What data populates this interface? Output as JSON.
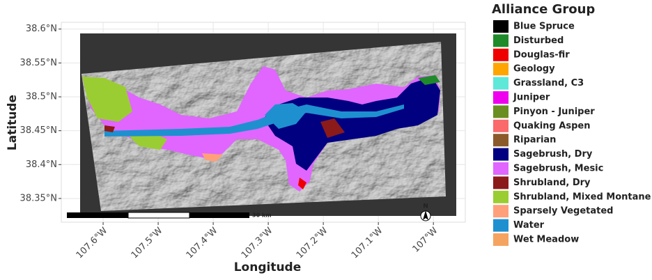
{
  "chart_data": {
    "type": "map",
    "xlabel": "Longitude",
    "ylabel": "Latitude",
    "xlim": [
      -107.676,
      -106.942
    ],
    "ylim": [
      38.315,
      38.61
    ],
    "xticks": [
      {
        "value": -107.6,
        "label": "107.6°W"
      },
      {
        "value": -107.5,
        "label": "107.5°W"
      },
      {
        "value": -107.4,
        "label": "107.4°W"
      },
      {
        "value": -107.3,
        "label": "107.3°W"
      },
      {
        "value": -107.2,
        "label": "107.2°W"
      },
      {
        "value": -107.1,
        "label": "107.1°W"
      },
      {
        "value": -107.0,
        "label": "107°W"
      }
    ],
    "yticks": [
      {
        "value": 38.35,
        "label": "38.35°N"
      },
      {
        "value": 38.4,
        "label": "38.4°N"
      },
      {
        "value": 38.45,
        "label": "38.45°N"
      },
      {
        "value": 38.5,
        "label": "38.5°N"
      },
      {
        "value": 38.55,
        "label": "38.55°N"
      },
      {
        "value": 38.6,
        "label": "38.6°N"
      }
    ],
    "grid": true,
    "scale_bar_label": "30 km",
    "north_label": "N",
    "legend": {
      "title": "Alliance Group",
      "items": [
        {
          "name": "Blue Spruce",
          "color": "#000000"
        },
        {
          "name": "Disturbed",
          "color": "#1f8a2a"
        },
        {
          "name": "Douglas-fir",
          "color": "#ee0000"
        },
        {
          "name": "Geology",
          "color": "#ffa500"
        },
        {
          "name": "Grassland, C3",
          "color": "#5ee8d8"
        },
        {
          "name": "Juniper",
          "color": "#ee00ee"
        },
        {
          "name": "Pinyon - Juniper",
          "color": "#6b8e23"
        },
        {
          "name": "Quaking Aspen",
          "color": "#fa6a6a"
        },
        {
          "name": "Riparian",
          "color": "#8b5a2b"
        },
        {
          "name": "Sagebrush, Dry",
          "color": "#000080"
        },
        {
          "name": "Sagebrush, Mesic",
          "color": "#e066ff"
        },
        {
          "name": "Shrubland, Dry",
          "color": "#8b1a1a"
        },
        {
          "name": "Shrubland, Mixed Montane",
          "color": "#9acd32"
        },
        {
          "name": "Sparsely Vegetated",
          "color": "#ffa07a"
        },
        {
          "name": "Water",
          "color": "#1e90d0"
        },
        {
          "name": "Wet Meadow",
          "color": "#f4a460"
        }
      ]
    }
  }
}
